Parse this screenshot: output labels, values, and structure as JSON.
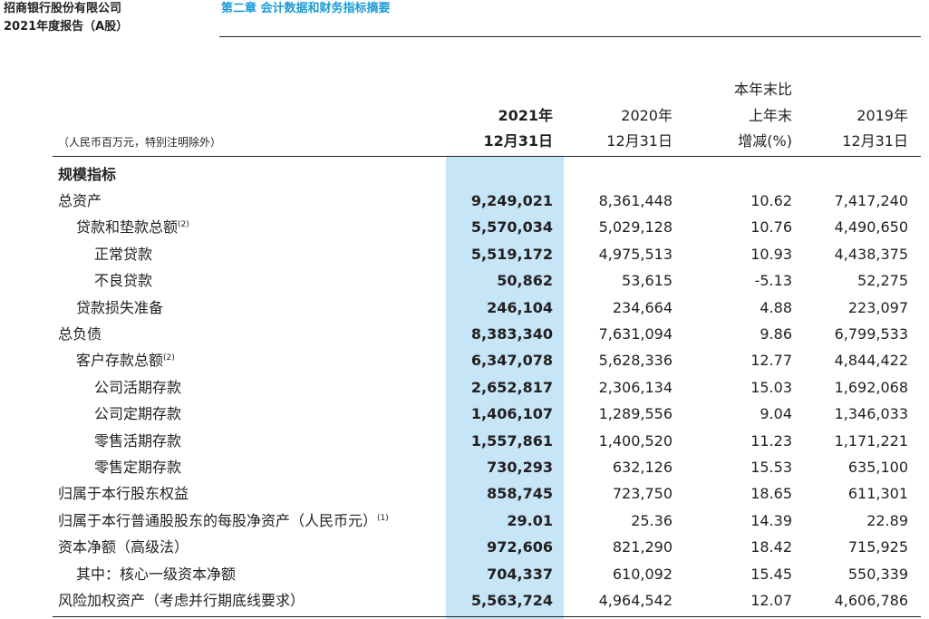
{
  "header": {
    "company": "招商银行股份有限公司",
    "report": "2021年度报告（A股）",
    "chapter": "第二章 会计数据和财务指标摘要"
  },
  "table": {
    "unit_note": "（人民币百万元，特别注明除外）",
    "columns": [
      {
        "line1": "",
        "line2": "2021年",
        "line3": "12月31日"
      },
      {
        "line1": "",
        "line2": "2020年",
        "line3": "12月31日"
      },
      {
        "line1": "本年末比",
        "line2": "上年末",
        "line3": "增减(%)"
      },
      {
        "line1": "",
        "line2": "2019年",
        "line3": "12月31日"
      }
    ],
    "section_title": "规模指标",
    "rows": [
      {
        "label": "总资产",
        "note": "",
        "values": [
          "9,249,021",
          "8,361,448",
          "10.62",
          "7,417,240"
        ]
      },
      {
        "label": "贷款和垫款总额",
        "note": "(2)",
        "values": [
          "5,570,034",
          "5,029,128",
          "10.76",
          "4,490,650"
        ]
      },
      {
        "label": "正常贷款",
        "note": "",
        "values": [
          "5,519,172",
          "4,975,513",
          "10.93",
          "4,438,375"
        ]
      },
      {
        "label": "不良贷款",
        "note": "",
        "values": [
          "50,862",
          "53,615",
          "-5.13",
          "52,275"
        ]
      },
      {
        "label": "贷款损失准备",
        "note": "",
        "values": [
          "246,104",
          "234,664",
          "4.88",
          "223,097"
        ]
      },
      {
        "label": "总负债",
        "note": "",
        "values": [
          "8,383,340",
          "7,631,094",
          "9.86",
          "6,799,533"
        ]
      },
      {
        "label": "客户存款总额",
        "note": "(2)",
        "values": [
          "6,347,078",
          "5,628,336",
          "12.77",
          "4,844,422"
        ]
      },
      {
        "label": "公司活期存款",
        "note": "",
        "values": [
          "2,652,817",
          "2,306,134",
          "15.03",
          "1,692,068"
        ]
      },
      {
        "label": "公司定期存款",
        "note": "",
        "values": [
          "1,406,107",
          "1,289,556",
          "9.04",
          "1,346,033"
        ]
      },
      {
        "label": "零售活期存款",
        "note": "",
        "values": [
          "1,557,861",
          "1,400,520",
          "11.23",
          "1,171,221"
        ]
      },
      {
        "label": "零售定期存款",
        "note": "",
        "values": [
          "730,293",
          "632,126",
          "15.53",
          "635,100"
        ]
      },
      {
        "label": "归属于本行股东权益",
        "note": "",
        "values": [
          "858,745",
          "723,750",
          "18.65",
          "611,301"
        ]
      },
      {
        "label": "归属于本行普通股股东的每股净资产（人民币元）",
        "note": "(1)",
        "values": [
          "29.01",
          "25.36",
          "14.39",
          "22.89"
        ]
      },
      {
        "label": "资本净额（高级法）",
        "note": "",
        "values": [
          "972,606",
          "821,290",
          "18.42",
          "715,925"
        ]
      },
      {
        "label": "其中：核心一级资本净额",
        "note": "",
        "values": [
          "704,337",
          "610,092",
          "15.45",
          "550,339"
        ]
      },
      {
        "label": "风险加权资产（考虑并行期底线要求）",
        "note": "",
        "values": [
          "5,563,724",
          "4,964,542",
          "12.07",
          "4,606,786"
        ]
      }
    ]
  }
}
